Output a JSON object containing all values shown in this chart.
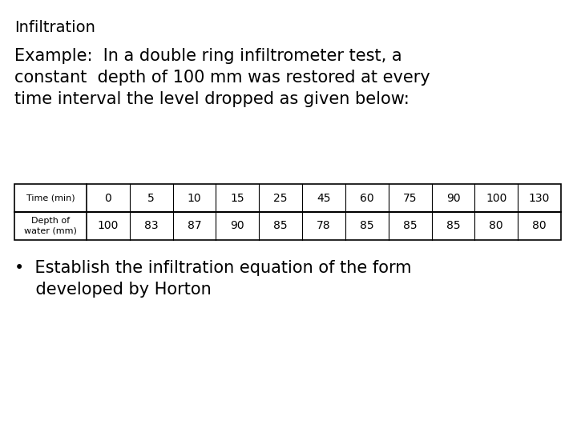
{
  "title": "Infiltration",
  "example_text": "Example:  In a double ring infiltrometer test, a\nconstant  depth of 100 mm was restored at every\ntime interval the level dropped as given below:",
  "bullet_line1": "•  Establish the infiltration equation of the form",
  "bullet_line2": "    developed by Horton",
  "table_header_row1_label": "Time (min)",
  "table_header_row2_label": "Depth of\nwater (mm)",
  "time_values": [
    "0",
    "5",
    "10",
    "15",
    "25",
    "45",
    "60",
    "75",
    "90",
    "100",
    "130"
  ],
  "depth_values": [
    "100",
    "83",
    "87",
    "90",
    "85",
    "78",
    "85",
    "85",
    "85",
    "80",
    "80"
  ],
  "bg_color": "#ffffff",
  "text_color": "#000000",
  "table_border_color": "#000000",
  "title_fontsize": 14,
  "example_fontsize": 15,
  "table_label_fontsize": 8,
  "table_data_fontsize": 10,
  "bullet_fontsize": 15
}
